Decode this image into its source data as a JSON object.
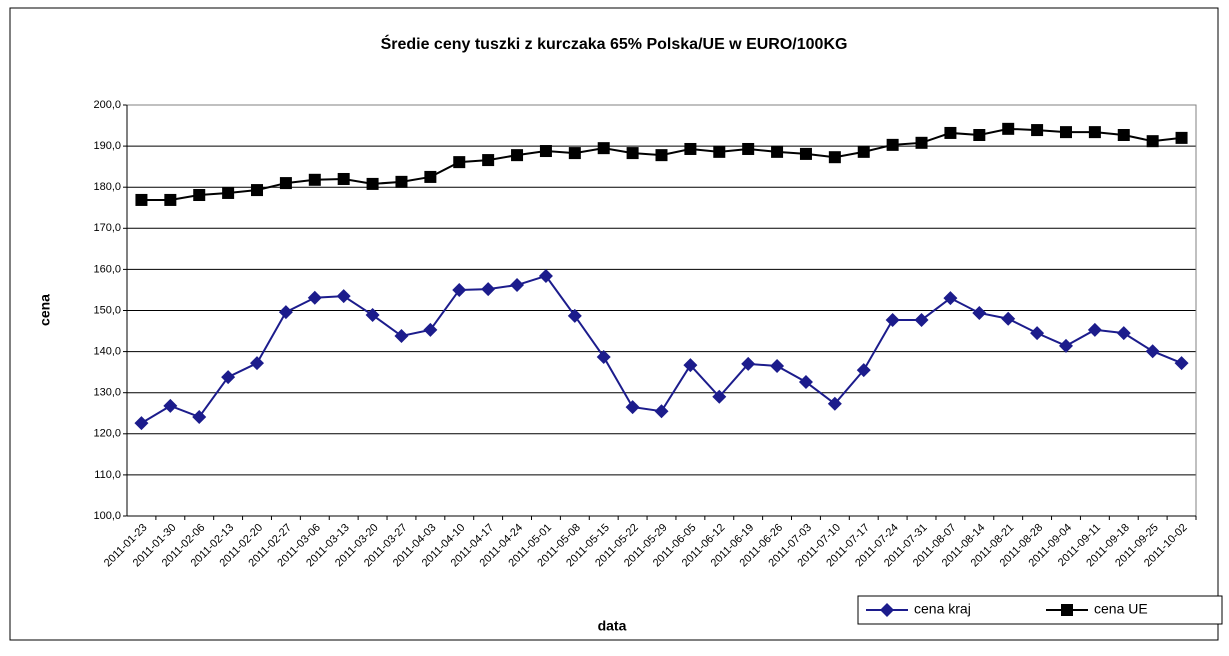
{
  "chart_data": {
    "type": "line",
    "title": "Średie ceny tuszki z kurczaka 65% Polska/UE w EURO/100KG",
    "x_label": "data",
    "y_label": "cena",
    "categories": [
      "2011-01-23",
      "2011-01-30",
      "2011-02-06",
      "2011-02-13",
      "2011-02-20",
      "2011-02-27",
      "2011-03-06",
      "2011-03-13",
      "2011-03-20",
      "2011-03-27",
      "2011-04-03",
      "2011-04-10",
      "2011-04-17",
      "2011-04-24",
      "2011-05-01",
      "2011-05-08",
      "2011-05-15",
      "2011-05-22",
      "2011-05-29",
      "2011-06-05",
      "2011-06-12",
      "2011-06-19",
      "2011-06-26",
      "2011-07-03",
      "2011-07-10",
      "2011-07-17",
      "2011-07-24",
      "2011-07-31",
      "2011-08-07",
      "2011-08-14",
      "2011-08-21",
      "2011-08-28",
      "2011-09-04",
      "2011-09-11",
      "2011-09-18",
      "2011-09-25",
      "2011-10-02"
    ],
    "series": [
      {
        "name": "cena kraj",
        "color": "#1c1c8c",
        "marker": "diamond",
        "values": [
          122.6,
          126.8,
          124.1,
          133.8,
          137.2,
          149.6,
          153.1,
          153.5,
          148.9,
          143.8,
          145.3,
          155.0,
          155.2,
          156.2,
          158.4,
          148.7,
          138.7,
          126.5,
          125.5,
          136.7,
          129.0,
          137.0,
          136.5,
          132.6,
          127.3,
          135.5,
          147.7,
          147.7,
          153.0,
          149.4,
          148.0,
          144.5,
          141.4,
          145.3,
          144.5,
          140.1,
          137.2
        ]
      },
      {
        "name": "cena UE",
        "color": "#000000",
        "marker": "square",
        "values": [
          176.9,
          176.9,
          178.1,
          178.6,
          179.3,
          181.0,
          181.8,
          182.0,
          180.8,
          181.3,
          182.5,
          186.1,
          186.6,
          187.8,
          188.8,
          188.3,
          189.5,
          188.3,
          187.8,
          189.3,
          188.6,
          189.3,
          188.6,
          188.1,
          187.3,
          188.6,
          190.3,
          190.8,
          193.2,
          192.7,
          194.2,
          193.9,
          193.4,
          193.4,
          192.7,
          191.2,
          192.0
        ]
      }
    ],
    "ylim": [
      100,
      200
    ],
    "yticks": [
      {
        "value": 100,
        "label": "100,0"
      },
      {
        "value": 110,
        "label": "110,0"
      },
      {
        "value": 120,
        "label": "120,0"
      },
      {
        "value": 130,
        "label": "130,0"
      },
      {
        "value": 140,
        "label": "140,0"
      },
      {
        "value": 150,
        "label": "150,0"
      },
      {
        "value": 160,
        "label": "160,0"
      },
      {
        "value": 170,
        "label": "170,0"
      },
      {
        "value": 180,
        "label": "180,0"
      },
      {
        "value": 190,
        "label": "190,0"
      },
      {
        "value": 200,
        "label": "200,0"
      }
    ],
    "grid": true,
    "legend": "bottom-right"
  }
}
